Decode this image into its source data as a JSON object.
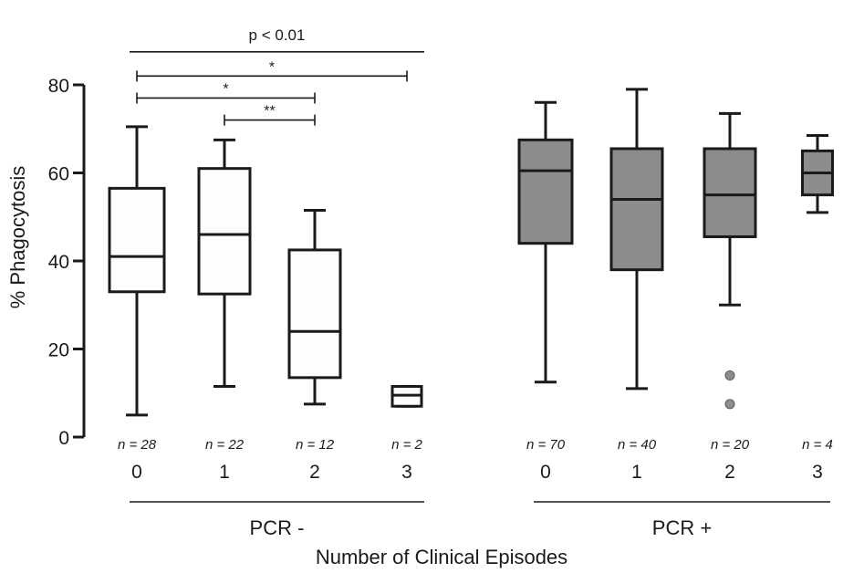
{
  "chart_data": {
    "type": "box",
    "ylabel": "% Phagocytosis",
    "xlabel": "Number of Clinical Episodes",
    "ylim": [
      0,
      80
    ],
    "yticks": [
      "0",
      "20",
      "40",
      "60",
      "80"
    ],
    "groups": [
      {
        "label": "PCR -",
        "fill": "#fdfdfb",
        "boxes": [
          {
            "category": "0",
            "n_label": "n = 28",
            "min": 5,
            "q1": 33,
            "median": 41,
            "q3": 56.5,
            "max": 70.5,
            "outliers": []
          },
          {
            "category": "1",
            "n_label": "n = 22",
            "min": 11.5,
            "q1": 32.5,
            "median": 46,
            "q3": 61,
            "max": 67.5,
            "outliers": []
          },
          {
            "category": "2",
            "n_label": "n = 12",
            "min": 7.5,
            "q1": 13.5,
            "median": 24,
            "q3": 42.5,
            "max": 51.5,
            "outliers": []
          },
          {
            "category": "3",
            "n_label": "n = 2",
            "min": 7,
            "q1": 7,
            "median": 9.5,
            "q3": 11.5,
            "max": 11.5,
            "outliers": []
          }
        ]
      },
      {
        "label": "PCR +",
        "fill": "#8c8c8c",
        "boxes": [
          {
            "category": "0",
            "n_label": "n = 70",
            "min": 12.5,
            "q1": 44,
            "median": 60.5,
            "q3": 67.5,
            "max": 76,
            "outliers": []
          },
          {
            "category": "1",
            "n_label": "n = 40",
            "min": 11,
            "q1": 38,
            "median": 54,
            "q3": 65.5,
            "max": 79,
            "outliers": []
          },
          {
            "category": "2",
            "n_label": "n = 20",
            "min": 30,
            "q1": 45.5,
            "median": 55,
            "q3": 65.5,
            "max": 73.5,
            "outliers": [
              14,
              7.5
            ]
          },
          {
            "category": "3",
            "n_label": "n = 4",
            "min": 51,
            "q1": 55,
            "median": 60,
            "q3": 65,
            "max": 68.5,
            "outliers": []
          }
        ]
      }
    ],
    "annotations": [
      {
        "text": "p < 0.01",
        "from": [
          0,
          0
        ],
        "to": [
          0,
          3
        ],
        "y": 87.5,
        "brackets": false
      },
      {
        "text": "*",
        "from": [
          0,
          0
        ],
        "to": [
          0,
          3
        ],
        "y": 82,
        "brackets": true
      },
      {
        "text": "*",
        "from": [
          0,
          0
        ],
        "to": [
          0,
          2
        ],
        "y": 77,
        "brackets": true
      },
      {
        "text": "**",
        "from": [
          0,
          1
        ],
        "to": [
          0,
          2
        ],
        "y": 72,
        "brackets": true
      }
    ]
  }
}
